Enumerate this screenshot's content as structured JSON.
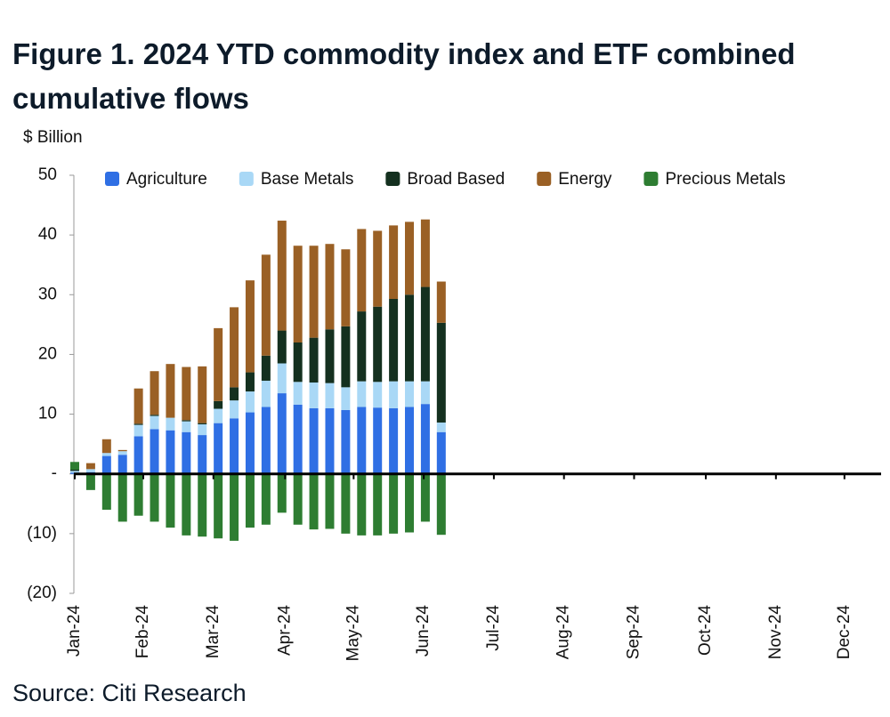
{
  "chart_data": {
    "type": "bar",
    "stacked": true,
    "title": "Figure 1. 2024 YTD commodity index and ETF combined cumulative flows",
    "y_label": "$ Billion",
    "source": "Source: Citi Research",
    "x": [
      0,
      1,
      2,
      3,
      4,
      5,
      6,
      7,
      8,
      9,
      10,
      11,
      12,
      13,
      14,
      15,
      16,
      17,
      18,
      19,
      20,
      21,
      22,
      23
    ],
    "xlim": [
      0,
      50.6
    ],
    "xticks": [
      {
        "value": 0,
        "label": "Jan-24"
      },
      {
        "value": 4.3,
        "label": "Feb-24"
      },
      {
        "value": 8.7,
        "label": "Mar-24"
      },
      {
        "value": 13.2,
        "label": "Apr-24"
      },
      {
        "value": 17.5,
        "label": "May-24"
      },
      {
        "value": 21.9,
        "label": "Jun-24"
      },
      {
        "value": 26.3,
        "label": "Jul-24"
      },
      {
        "value": 30.7,
        "label": "Aug-24"
      },
      {
        "value": 35.1,
        "label": "Sep-24"
      },
      {
        "value": 39.6,
        "label": "Oct-24"
      },
      {
        "value": 44.0,
        "label": "Nov-24"
      },
      {
        "value": 48.3,
        "label": "Dec-24"
      }
    ],
    "ylim": [
      -20,
      50
    ],
    "yticks": [
      50,
      40,
      30,
      20,
      10,
      {
        "value": 0,
        "label": "-"
      },
      {
        "value": -10,
        "label": "(10)"
      },
      {
        "value": -20,
        "label": "(20)"
      }
    ],
    "legend": "top",
    "series": [
      {
        "name": "Agriculture",
        "color": "#2f6fe4",
        "values": [
          0.2,
          0.3,
          3.0,
          3.2,
          6.3,
          7.5,
          7.3,
          7.0,
          6.5,
          8.5,
          9.3,
          10.3,
          11.2,
          13.5,
          11.6,
          11.0,
          11.0,
          10.7,
          11.2,
          11.1,
          11.0,
          11.2,
          11.7,
          7.0
        ]
      },
      {
        "name": "Base Metals",
        "color": "#a9d8f6",
        "values": [
          0.3,
          0.5,
          0.5,
          0.6,
          1.9,
          2.2,
          2.1,
          1.8,
          1.8,
          2.4,
          3.0,
          3.5,
          4.4,
          5.0,
          3.8,
          4.3,
          4.2,
          3.8,
          4.3,
          4.3,
          4.5,
          4.3,
          3.8,
          1.6
        ]
      },
      {
        "name": "Broad Based",
        "color": "#14301f",
        "values": [
          0.2,
          0,
          0,
          0,
          0.2,
          0.2,
          0,
          0.2,
          0.2,
          1.3,
          2.2,
          3.2,
          4.2,
          5.5,
          6.6,
          7.5,
          9.0,
          10.2,
          11.7,
          12.6,
          13.8,
          14.5,
          15.8,
          16.7
        ]
      },
      {
        "name": "Energy",
        "color": "#9a6025",
        "values": [
          0,
          1.0,
          2.3,
          0.2,
          5.9,
          7.3,
          9.0,
          8.9,
          9.5,
          12.2,
          13.4,
          15.4,
          16.9,
          18.4,
          16.2,
          15.4,
          14.3,
          12.9,
          13.8,
          12.7,
          12.3,
          12.2,
          11.3,
          6.9
        ]
      },
      {
        "name": "Precious Metals",
        "color": "#2e7d32",
        "values": [
          1.3,
          -2.7,
          -6.0,
          -8.0,
          -7.0,
          -8.0,
          -9.0,
          -10.3,
          -10.5,
          -10.8,
          -11.2,
          -9.0,
          -8.5,
          -6.5,
          -8.5,
          -9.3,
          -9.2,
          -10.0,
          -10.3,
          -10.3,
          -10.0,
          -9.8,
          -8.0,
          -10.2
        ]
      }
    ]
  }
}
